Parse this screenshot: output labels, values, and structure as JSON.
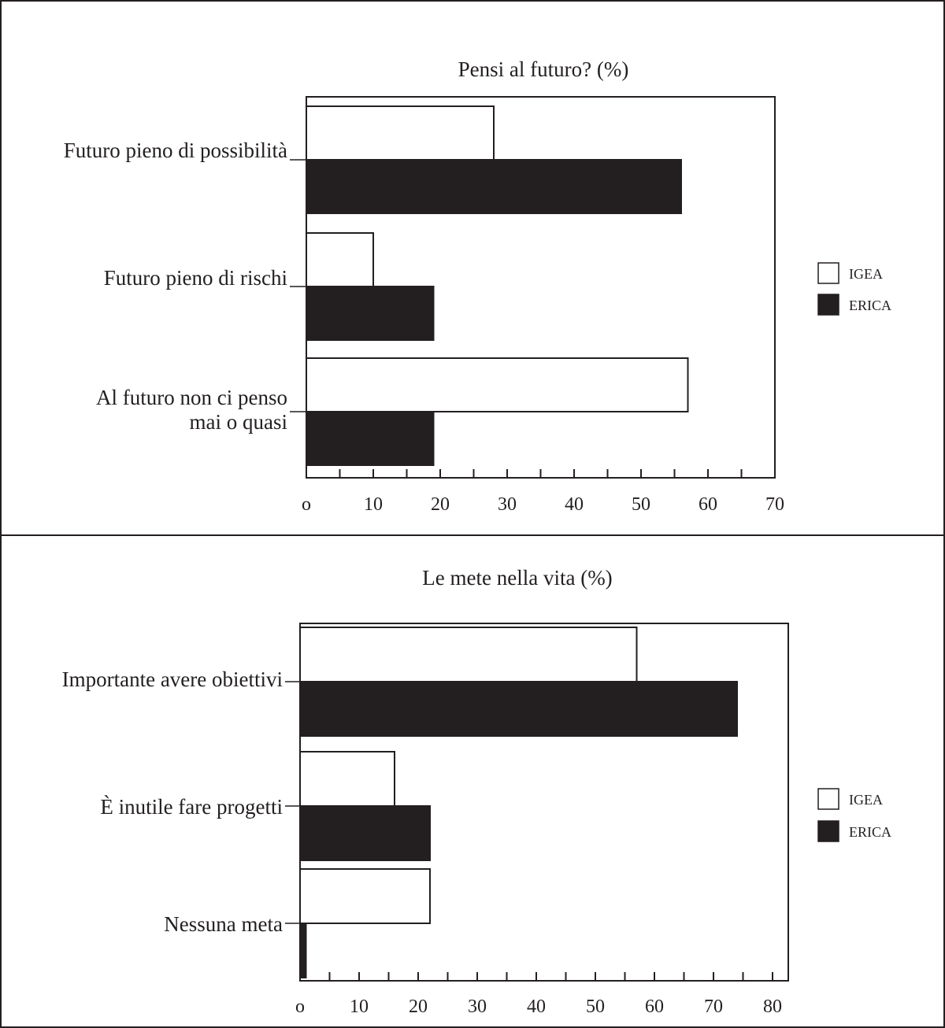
{
  "chart_data": [
    {
      "type": "bar",
      "orientation": "horizontal",
      "title": "Pensi al futuro? (%)",
      "categories": [
        [
          "Futuro pieno di possibilità"
        ],
        [
          "Futuro pieno di rischi"
        ],
        [
          "Al futuro non ci penso",
          "mai o quasi"
        ]
      ],
      "series": [
        {
          "name": "IGEA",
          "color": "#ffffff",
          "values": [
            28,
            10,
            57
          ]
        },
        {
          "name": "ERICA",
          "color": "#231f20",
          "values": [
            56,
            19,
            19
          ]
        }
      ],
      "xlim": [
        0,
        70
      ],
      "xticks": [
        0,
        10,
        20,
        30,
        40,
        50,
        60,
        70
      ],
      "xtick_labels": [
        "o",
        "10",
        "20",
        "30",
        "40",
        "50",
        "60",
        "70"
      ],
      "grid": false,
      "legend_position": "right"
    },
    {
      "type": "bar",
      "orientation": "horizontal",
      "title": "Le mete nella vita (%)",
      "categories": [
        [
          "Importante avere obiettivi"
        ],
        [
          "È inutile fare progetti"
        ],
        [
          "Nessuna meta"
        ]
      ],
      "series": [
        {
          "name": "IGEA",
          "color": "#ffffff",
          "values": [
            57,
            16,
            22
          ]
        },
        {
          "name": "ERICA",
          "color": "#231f20",
          "values": [
            74,
            22,
            1
          ]
        }
      ],
      "xlim": [
        0,
        80
      ],
      "xticks": [
        0,
        10,
        20,
        30,
        40,
        50,
        60,
        70,
        80
      ],
      "xtick_labels": [
        "o",
        "10",
        "20",
        "30",
        "40",
        "50",
        "60",
        "70",
        "80"
      ],
      "grid": false,
      "legend_position": "right"
    }
  ]
}
